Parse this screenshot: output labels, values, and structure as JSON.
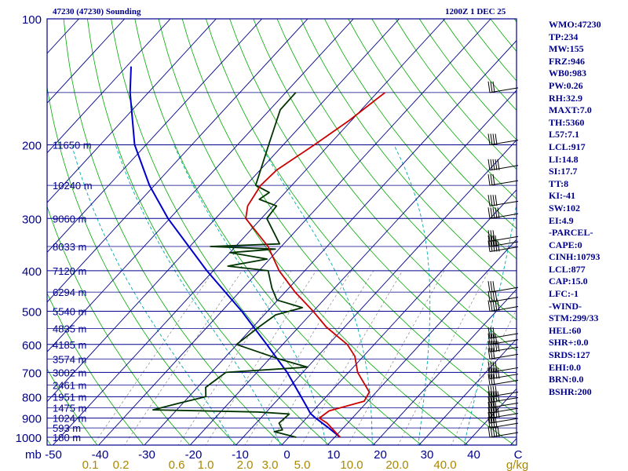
{
  "header": {
    "left": "47230 (47230) Sounding",
    "right": "1200Z  1 DEC 25"
  },
  "colors": {
    "frame": "#00008b",
    "temperature": "#cc0000",
    "dewpoint": "#003300",
    "parcel": "#0000cc",
    "dry_adiabat": "#00aa00",
    "moist_adiabat": "#00aaaa",
    "mixing_ratio": "#888888"
  },
  "stats": [
    "WMO:47230",
    "TP:234",
    "MW:155",
    "FRZ:946",
    "WB0:983",
    "PW:0.26",
    "RH:32.9",
    "MAXT:7.0",
    "TH:5360",
    "L57:7.1",
    "LCL:917",
    "LI:14.8",
    "SI:17.7",
    "TT:8",
    "KI:-41",
    "SW:102",
    "EI:4.9",
    "-PARCEL-",
    "CAPE:0",
    "CINH:10793",
    "LCL:877",
    "CAP:15.0",
    "LFC:-1",
    "-WIND-",
    "STM:299/33",
    "HEL:60",
    "SHR+:0.0",
    "SRDS:127",
    "EHI:0.0",
    "BRN:0.0",
    "BSHR:200"
  ],
  "chart_data": {
    "type": "skew-t",
    "y_axis": {
      "label": "mb",
      "ticks": [
        100,
        200,
        300,
        400,
        500,
        600,
        700,
        800,
        900,
        1000
      ],
      "range": [
        100,
        1050
      ],
      "scale": "log"
    },
    "x_axis": {
      "unit": "C",
      "ticks": [
        -50,
        -40,
        -30,
        -20,
        -10,
        0,
        10,
        20,
        30,
        40
      ]
    },
    "mixing_ratio_axis": {
      "unit": "g/kg",
      "ticks": [
        "0.1",
        "0.2",
        "0.6",
        "1.0",
        "2.0",
        "3.0",
        "5.0",
        "10.0",
        "20.0",
        "40.0"
      ]
    },
    "height_labels": [
      {
        "p": 200,
        "label": "11650 m"
      },
      {
        "p": 250,
        "label": "10240 m"
      },
      {
        "p": 300,
        "label": "9060 m"
      },
      {
        "p": 350,
        "label": "8033 m"
      },
      {
        "p": 400,
        "label": "7120 m"
      },
      {
        "p": 450,
        "label": "6294 m"
      },
      {
        "p": 500,
        "label": "5540 m"
      },
      {
        "p": 550,
        "label": "4835 m"
      },
      {
        "p": 600,
        "label": "4185 m"
      },
      {
        "p": 650,
        "label": "3574 m"
      },
      {
        "p": 700,
        "label": "3002 m"
      },
      {
        "p": 750,
        "label": "2461 m"
      },
      {
        "p": 800,
        "label": "1951 m"
      },
      {
        "p": 850,
        "label": "1475 m"
      },
      {
        "p": 900,
        "label": "1024 m"
      },
      {
        "p": 950,
        "label": "593 m"
      },
      {
        "p": 1000,
        "label": "180 m"
      }
    ],
    "temperature": [
      {
        "p": 1000,
        "t": 11.2
      },
      {
        "p": 925,
        "t": 5.5
      },
      {
        "p": 900,
        "t": 2.8
      },
      {
        "p": 865,
        "t": 3.5
      },
      {
        "p": 820,
        "t": 9.2
      },
      {
        "p": 780,
        "t": 8.5
      },
      {
        "p": 700,
        "t": 2.0
      },
      {
        "p": 640,
        "t": -1.9
      },
      {
        "p": 600,
        "t": -5.9
      },
      {
        "p": 545,
        "t": -14.0
      },
      {
        "p": 500,
        "t": -20.0
      },
      {
        "p": 450,
        "t": -27.8
      },
      {
        "p": 400,
        "t": -35.6
      },
      {
        "p": 350,
        "t": -42.9
      },
      {
        "p": 300,
        "t": -53.4
      },
      {
        "p": 280,
        "t": -55.5
      },
      {
        "p": 250,
        "t": -56.8
      },
      {
        "p": 230,
        "t": -56.4
      },
      {
        "p": 200,
        "t": -53.2
      },
      {
        "p": 175,
        "t": -50.5
      },
      {
        "p": 150,
        "t": -48.3
      }
    ],
    "dewpoint": [
      {
        "p": 1000,
        "t": 1.6
      },
      {
        "p": 970,
        "t": -4.3
      },
      {
        "p": 960,
        "t": -2.9
      },
      {
        "p": 925,
        "t": -5.0
      },
      {
        "p": 880,
        "t": -4.6
      },
      {
        "p": 870,
        "t": -11.9
      },
      {
        "p": 860,
        "t": -35.2
      },
      {
        "p": 830,
        "t": -31.0
      },
      {
        "p": 800,
        "t": -26.3
      },
      {
        "p": 760,
        "t": -28.2
      },
      {
        "p": 700,
        "t": -26.8
      },
      {
        "p": 680,
        "t": -10.0
      },
      {
        "p": 650,
        "t": -17.9
      },
      {
        "p": 600,
        "t": -30.1
      },
      {
        "p": 545,
        "t": -28.7
      },
      {
        "p": 510,
        "t": -27.5
      },
      {
        "p": 490,
        "t": -23.1
      },
      {
        "p": 470,
        "t": -30.2
      },
      {
        "p": 440,
        "t": -33.7
      },
      {
        "p": 400,
        "t": -38.0
      },
      {
        "p": 390,
        "t": -47.7
      },
      {
        "p": 375,
        "t": -40.6
      },
      {
        "p": 362,
        "t": -50.0
      },
      {
        "p": 355,
        "t": -40.8
      },
      {
        "p": 350,
        "t": -55.5
      },
      {
        "p": 345,
        "t": -40.9
      },
      {
        "p": 300,
        "t": -48.8
      },
      {
        "p": 280,
        "t": -49.2
      },
      {
        "p": 270,
        "t": -54.3
      },
      {
        "p": 260,
        "t": -53.5
      },
      {
        "p": 250,
        "t": -57.9
      },
      {
        "p": 200,
        "t": -63.2
      },
      {
        "p": 165,
        "t": -67.7
      },
      {
        "p": 150,
        "t": -67.8
      }
    ],
    "parcel": [
      {
        "p": 1000,
        "t": 11.2
      },
      {
        "p": 950,
        "t": 6.8
      },
      {
        "p": 900,
        "t": 2.0
      },
      {
        "p": 877,
        "t": -0.1
      },
      {
        "p": 850,
        "t": -1.9
      },
      {
        "p": 800,
        "t": -5.5
      },
      {
        "p": 700,
        "t": -13.4
      },
      {
        "p": 600,
        "t": -23.5
      },
      {
        "p": 500,
        "t": -35.6
      },
      {
        "p": 400,
        "t": -51.4
      },
      {
        "p": 300,
        "t": -70.4
      },
      {
        "p": 250,
        "t": -81.1
      },
      {
        "p": 200,
        "t": -92.5
      },
      {
        "p": 150,
        "t": -104.0
      },
      {
        "p": 130,
        "t": -109.0
      }
    ],
    "wind_barb_levels": [
      150,
      200,
      230,
      250,
      280,
      300,
      340,
      350,
      360,
      450,
      475,
      500,
      580,
      600,
      625,
      650,
      700,
      725,
      750,
      800,
      825,
      850,
      875,
      900,
      925,
      950,
      1000
    ]
  }
}
